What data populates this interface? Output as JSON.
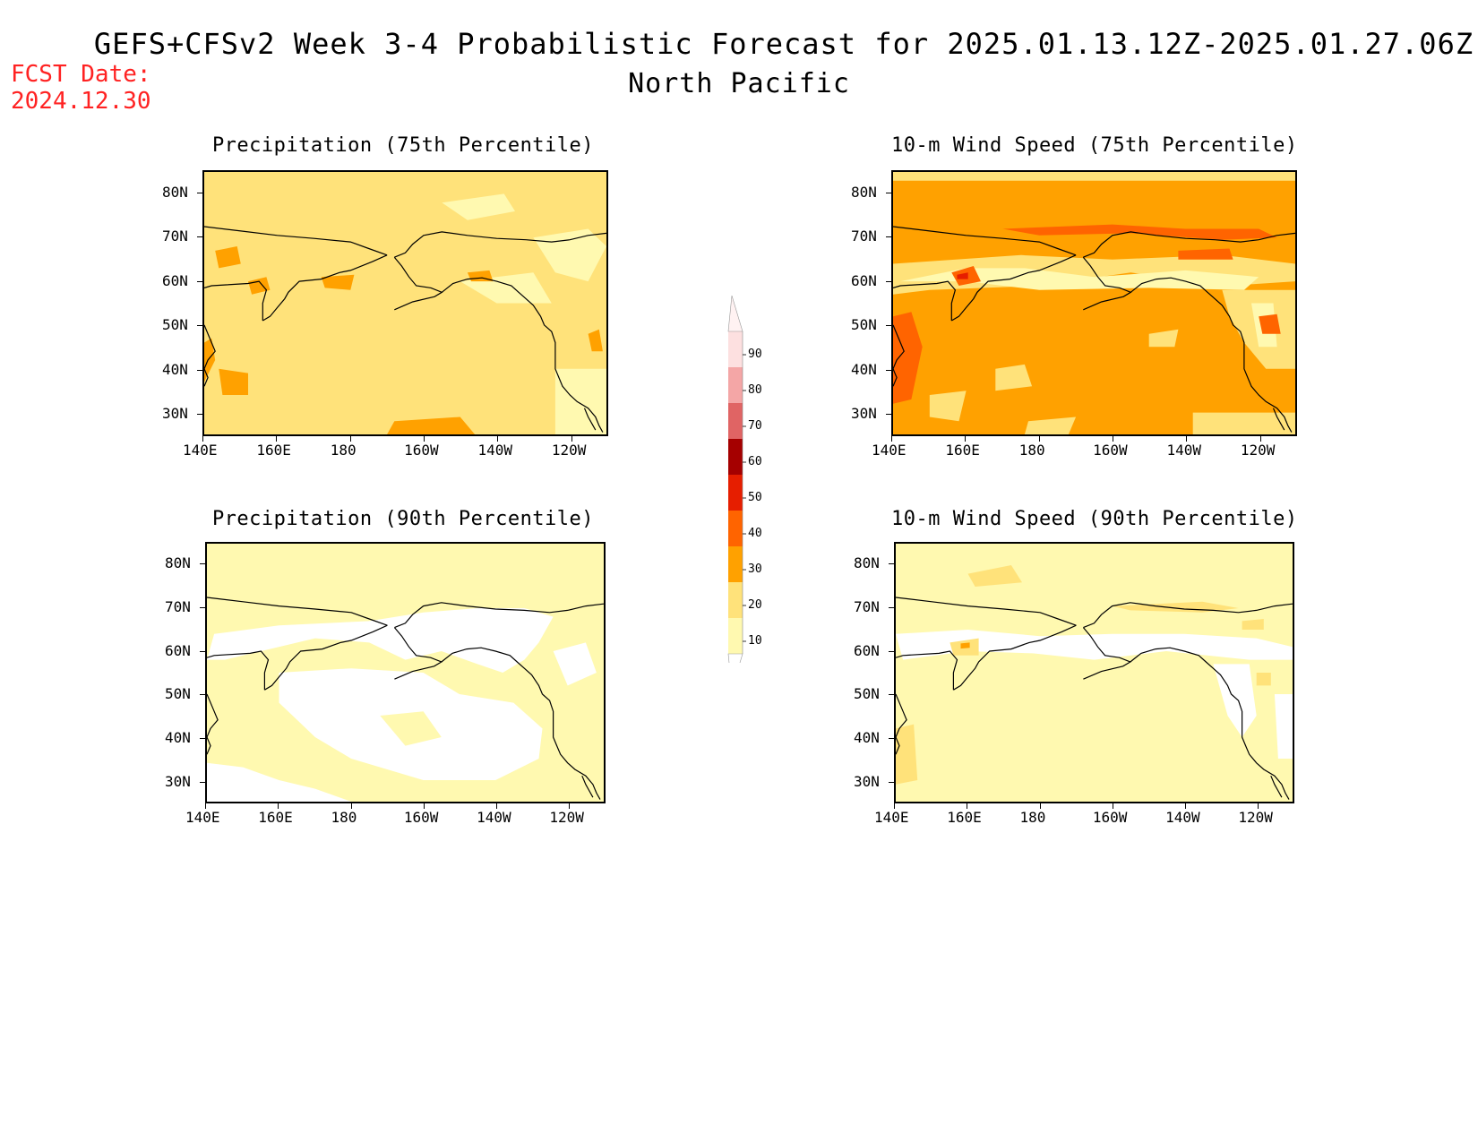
{
  "header": {
    "title": "GEFS+CFSv2 Week 3-4 Probabilistic Forecast for 2025.01.13.12Z-2025.01.27.06Z",
    "subtitle": "North Pacific",
    "fcst_label": "FCST Date:",
    "fcst_date": "2024.12.30"
  },
  "panels": [
    {
      "id": "precip75",
      "title": "Precipitation (75th Percentile)"
    },
    {
      "id": "wind75",
      "title": "10-m Wind Speed (75th Percentile)"
    },
    {
      "id": "precip90",
      "title": "Precipitation (90th Percentile)"
    },
    {
      "id": "wind90",
      "title": "10-m Wind Speed (90th Percentile)"
    }
  ],
  "axes": {
    "lat_labels": [
      "80N",
      "70N",
      "60N",
      "50N",
      "40N",
      "30N"
    ],
    "lon_labels": [
      "140E",
      "160E",
      "180",
      "160W",
      "140W",
      "120W"
    ]
  },
  "colorbar": {
    "levels": [
      "10",
      "20",
      "30",
      "40",
      "50",
      "60",
      "70",
      "80",
      "90"
    ],
    "colors": [
      "#fff9b0",
      "#ffe27a",
      "#ffa100",
      "#ff6400",
      "#e61e00",
      "#a50000",
      "#e06464",
      "#f4a6a6",
      "#fde0e0"
    ]
  },
  "fills": {
    "white": "#ffffff",
    "c10": "#fff9b0",
    "c20": "#ffe27a",
    "c30": "#ffa100",
    "c40": "#ff6400",
    "c50": "#e61e00"
  }
}
